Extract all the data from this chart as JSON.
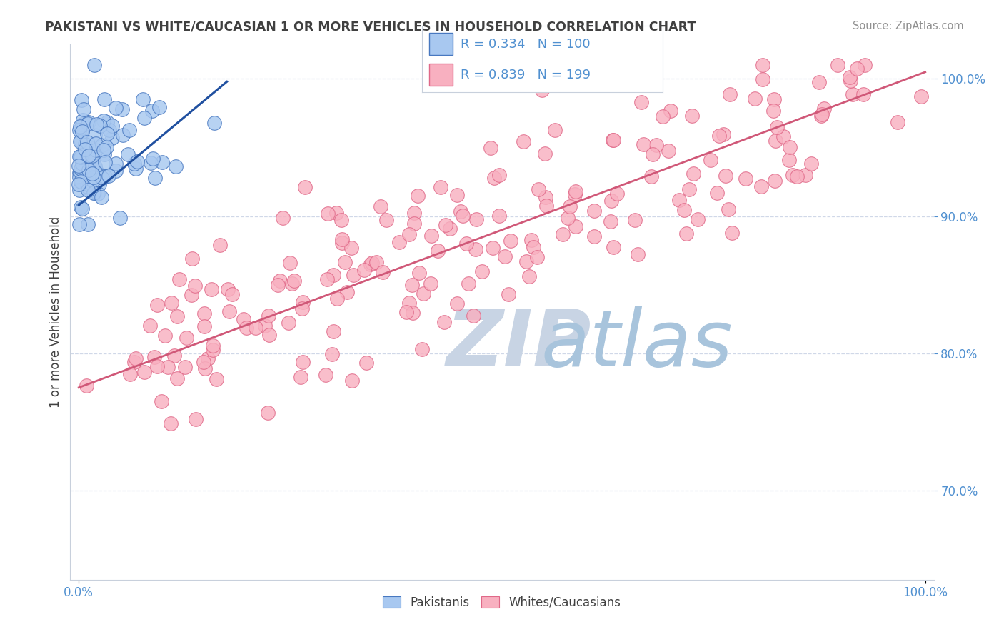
{
  "title": "PAKISTANI VS WHITE/CAUCASIAN 1 OR MORE VEHICLES IN HOUSEHOLD CORRELATION CHART",
  "source": "Source: ZipAtlas.com",
  "ylabel": "1 or more Vehicles in Household",
  "legend_label1": "Pakistanis",
  "legend_label2": "Whites/Caucasians",
  "R1": 0.334,
  "N1": 100,
  "R2": 0.839,
  "N2": 199,
  "blue_fill": "#A8C8F0",
  "blue_edge": "#4878C0",
  "pink_fill": "#F8B0C0",
  "pink_edge": "#E06888",
  "blue_line_color": "#2050A0",
  "pink_line_color": "#D05878",
  "title_color": "#404040",
  "source_color": "#909090",
  "axis_label_color": "#5090D0",
  "ylabel_color": "#404040",
  "watermark_ZIP_color": "#C8D4E4",
  "watermark_atlas_color": "#A8C4DC",
  "background_color": "#FFFFFF",
  "grid_color": "#D0D8E8",
  "ytick_labels": [
    "70.0%",
    "80.0%",
    "90.0%",
    "100.0%"
  ],
  "ytick_values": [
    0.7,
    0.8,
    0.9,
    1.0
  ],
  "xlim": [
    -0.01,
    1.01
  ],
  "ylim": [
    0.635,
    1.025
  ],
  "blue_trend_x": [
    0.0,
    0.175
  ],
  "blue_trend_y": [
    0.908,
    0.998
  ],
  "pink_trend_x": [
    0.0,
    1.0
  ],
  "pink_trend_y": [
    0.775,
    1.005
  ],
  "blue_seed": 12,
  "pink_seed": 99
}
